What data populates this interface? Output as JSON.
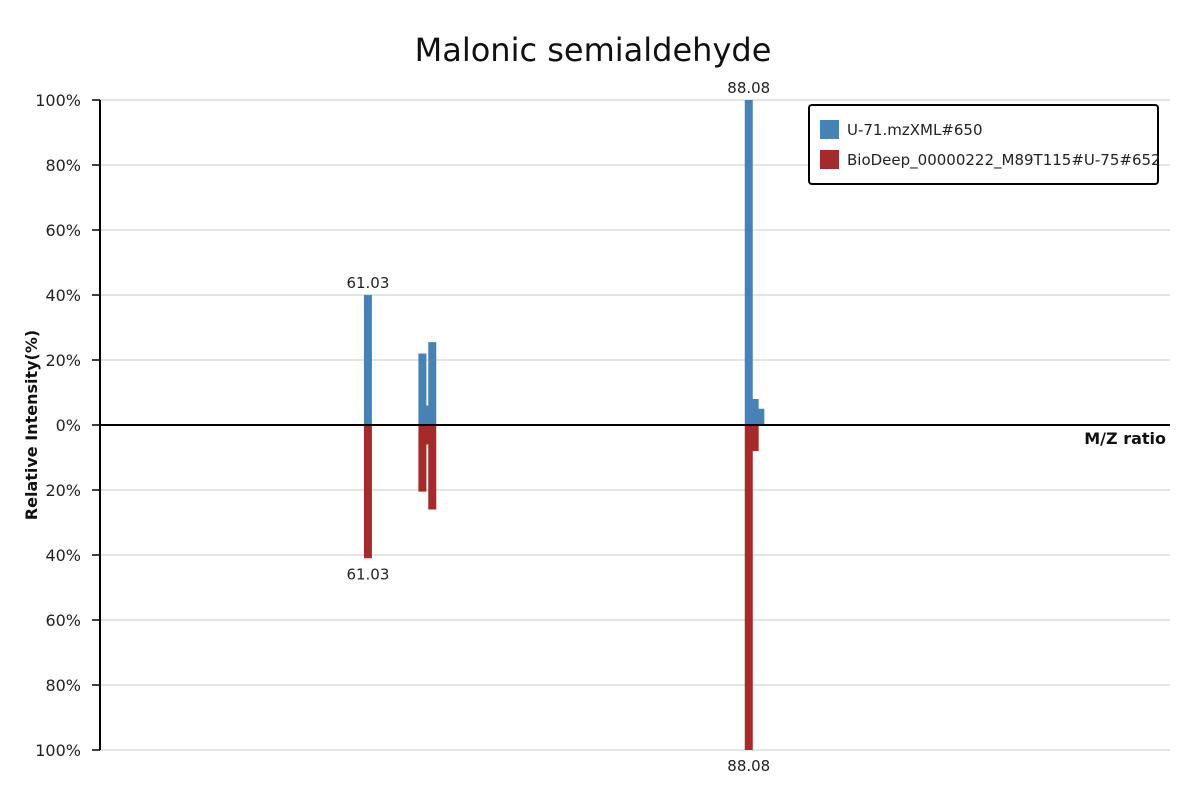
{
  "chart_data": {
    "type": "bar",
    "title": "Malonic semialdehyde",
    "xlabel": "M/Z ratio",
    "ylabel": "Relative Intensity(%)",
    "y_ticks_top": [
      "100%",
      "80%",
      "60%",
      "40%",
      "20%",
      "0%"
    ],
    "y_ticks_bottom": [
      "20%",
      "40%",
      "60%",
      "80%",
      "100%"
    ],
    "ylim": [
      -100,
      100
    ],
    "xlim": [
      42,
      118
    ],
    "grid": true,
    "legend_position": "top-right",
    "series": [
      {
        "name": "U-71.mzXML#650",
        "color": "#4682B4",
        "direction": "up",
        "peaks": [
          {
            "mz": 61.03,
            "intensity": 40,
            "label": "61.03"
          },
          {
            "mz": 64.9,
            "intensity": 22
          },
          {
            "mz": 65.2,
            "intensity": 6
          },
          {
            "mz": 65.6,
            "intensity": 25.5
          },
          {
            "mz": 88.08,
            "intensity": 100,
            "label": "88.08"
          },
          {
            "mz": 88.5,
            "intensity": 8
          },
          {
            "mz": 88.9,
            "intensity": 5
          }
        ]
      },
      {
        "name": "BioDeep_00000222_M89T115#U-75#652",
        "color": "#A52A2A",
        "direction": "down",
        "peaks": [
          {
            "mz": 61.03,
            "intensity": 41,
            "label": "61.03"
          },
          {
            "mz": 64.9,
            "intensity": 20.5
          },
          {
            "mz": 65.2,
            "intensity": 6
          },
          {
            "mz": 65.6,
            "intensity": 26
          },
          {
            "mz": 88.08,
            "intensity": 100,
            "label": "88.08"
          },
          {
            "mz": 88.5,
            "intensity": 8
          }
        ]
      }
    ]
  }
}
